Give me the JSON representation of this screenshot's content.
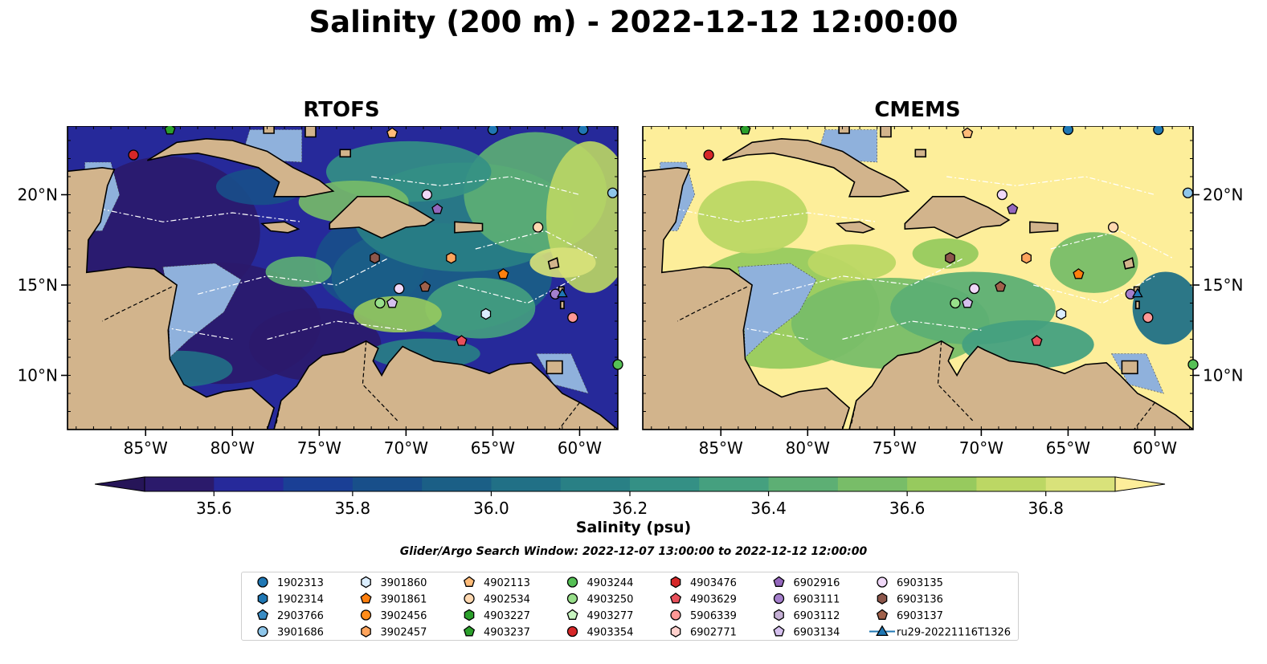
{
  "title": "Salinity (200 m) - 2022-12-12 12:00:00",
  "panels": [
    {
      "title": "RTOFS",
      "style": "rtofs"
    },
    {
      "title": "CMEMS",
      "style": "cmems"
    }
  ],
  "map": {
    "lon_range": [
      -89.5,
      -57.8
    ],
    "lat_range": [
      7.0,
      23.8
    ],
    "lon_ticks": [
      -85,
      -80,
      -75,
      -70,
      -65,
      -60
    ],
    "lon_tick_labels": [
      "85°W",
      "80°W",
      "75°W",
      "70°W",
      "65°W",
      "60°W"
    ],
    "lat_ticks": [
      10,
      15,
      20
    ],
    "lat_tick_labels": [
      "10°N",
      "15°N",
      "20°N"
    ],
    "land_color": "#d2b48c",
    "shelf_color": "#8fb1dc"
  },
  "colorbar": {
    "tick_values": [
      35.6,
      35.8,
      36.0,
      36.2,
      36.4,
      36.6,
      36.8
    ],
    "tick_labels": [
      "35.6",
      "35.8",
      "36.0",
      "36.2",
      "36.4",
      "36.6",
      "36.8"
    ],
    "label": "Salinity (psu)",
    "colors": [
      "#2b1a6b",
      "#26299a",
      "#1a3f95",
      "#184f8a",
      "#1b5f86",
      "#217086",
      "#298085",
      "#349085",
      "#45a07f",
      "#5daf74",
      "#78bd68",
      "#97ca5e",
      "#bcd764",
      "#d9e27a"
    ],
    "under_color": "#261558",
    "over_color": "#fdee9a"
  },
  "search_window": "Glider/Argo Search Window: 2022-12-07 13:00:00 to 2022-12-12 12:00:00",
  "legend": [
    {
      "label": "1902313",
      "color": "#1f77b4",
      "marker": "circle"
    },
    {
      "label": "1902314",
      "color": "#1f77b4",
      "marker": "hexagon"
    },
    {
      "label": "2903766",
      "color": "#3a8cc4",
      "marker": "pentagon"
    },
    {
      "label": "3901686",
      "color": "#8ec6ea",
      "marker": "circle"
    },
    {
      "label": "3901860",
      "color": "#dbeeff",
      "marker": "hexagon"
    },
    {
      "label": "3901861",
      "color": "#ff7f0e",
      "marker": "pentagon"
    },
    {
      "label": "3902456",
      "color": "#ff8c1a",
      "marker": "circle"
    },
    {
      "label": "3902457",
      "color": "#ffa45c",
      "marker": "hexagon"
    },
    {
      "label": "4902113",
      "color": "#ffbb78",
      "marker": "pentagon"
    },
    {
      "label": "4902534",
      "color": "#ffd8b0",
      "marker": "circle"
    },
    {
      "label": "4903227",
      "color": "#2ca02c",
      "marker": "hexagon"
    },
    {
      "label": "4903237",
      "color": "#2ca02c",
      "marker": "pentagon"
    },
    {
      "label": "4903244",
      "color": "#55c055",
      "marker": "circle"
    },
    {
      "label": "4903250",
      "color": "#98df8a",
      "marker": "circle"
    },
    {
      "label": "4903277",
      "color": "#c8f5c0",
      "marker": "pentagon"
    },
    {
      "label": "4903354",
      "color": "#d62728",
      "marker": "circle"
    },
    {
      "label": "4903476",
      "color": "#d62728",
      "marker": "hexagon"
    },
    {
      "label": "4903629",
      "color": "#e8505b",
      "marker": "pentagon"
    },
    {
      "label": "5906339",
      "color": "#ff9896",
      "marker": "circle"
    },
    {
      "label": "6902771",
      "color": "#ffd0cc",
      "marker": "hexagon"
    },
    {
      "label": "6902916",
      "color": "#9467bd",
      "marker": "pentagon"
    },
    {
      "label": "6903111",
      "color": "#a57fcc",
      "marker": "circle"
    },
    {
      "label": "6903112",
      "color": "#c5b0d5",
      "marker": "hexagon"
    },
    {
      "label": "6903134",
      "color": "#d5c0ee",
      "marker": "pentagon"
    },
    {
      "label": "6903135",
      "color": "#f0d8f8",
      "marker": "circle"
    },
    {
      "label": "6903136",
      "color": "#8c564b",
      "marker": "hexagon"
    },
    {
      "label": "6903137",
      "color": "#a0604a",
      "marker": "pentagon"
    },
    {
      "label": "ru29-20221116T1326",
      "color": "#1f77b4",
      "marker": "triangle"
    }
  ],
  "observations": [
    {
      "id": "1902313",
      "lon": -65.0,
      "lat": 23.6
    },
    {
      "id": "1902313",
      "lon": -59.8,
      "lat": 23.6
    },
    {
      "id": "4903237",
      "lon": -83.6,
      "lat": 23.6
    },
    {
      "id": "4902113",
      "lon": -70.8,
      "lat": 23.4
    },
    {
      "id": "4903354",
      "lon": -85.7,
      "lat": 22.2
    },
    {
      "id": "3901686",
      "lon": -58.1,
      "lat": 20.1
    },
    {
      "id": "6903135",
      "lon": -68.8,
      "lat": 20.0
    },
    {
      "id": "6902916",
      "lon": -68.2,
      "lat": 19.2
    },
    {
      "id": "4902534",
      "lon": -62.4,
      "lat": 18.2
    },
    {
      "id": "6903136",
      "lon": -71.8,
      "lat": 16.5
    },
    {
      "id": "3902457",
      "lon": -67.4,
      "lat": 16.5
    },
    {
      "id": "3901861",
      "lon": -64.4,
      "lat": 15.6
    },
    {
      "id": "6903137",
      "lon": -68.9,
      "lat": 14.9
    },
    {
      "id": "6903135",
      "lon": -70.4,
      "lat": 14.8
    },
    {
      "id": "6903111",
      "lon": -61.4,
      "lat": 14.5
    },
    {
      "id": "ru29-20221116T1326",
      "lon": -61.0,
      "lat": 14.5
    },
    {
      "id": "4903250",
      "lon": -71.5,
      "lat": 14.0
    },
    {
      "id": "6903134",
      "lon": -70.8,
      "lat": 14.0
    },
    {
      "id": "3901860",
      "lon": -65.4,
      "lat": 13.4
    },
    {
      "id": "5906339",
      "lon": -60.4,
      "lat": 13.2
    },
    {
      "id": "4903629",
      "lon": -66.8,
      "lat": 11.9
    },
    {
      "id": "4903244",
      "lon": -57.8,
      "lat": 10.6
    }
  ]
}
